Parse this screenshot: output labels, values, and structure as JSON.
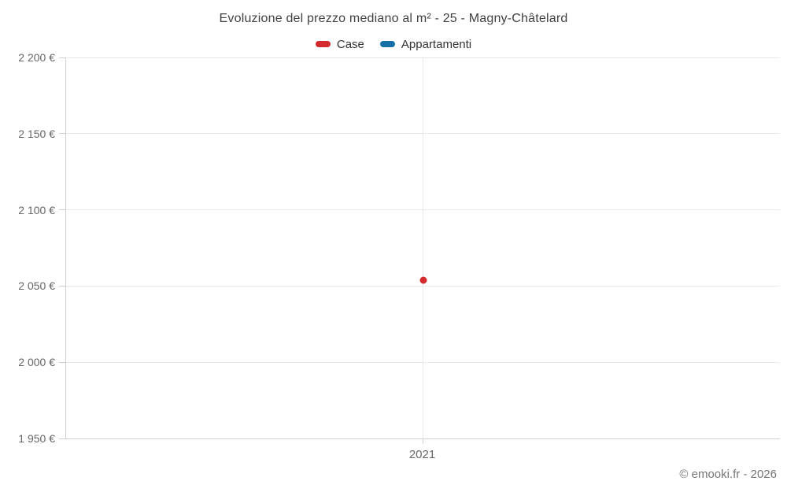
{
  "chart_data": {
    "type": "scatter",
    "title": "Evoluzione del prezzo mediano al m² - 25 - Magny-Châtelard",
    "xlabel": "",
    "ylabel": "",
    "categories": [
      "2021"
    ],
    "series": [
      {
        "name": "Case",
        "color": "#d22b2e",
        "values": [
          2054
        ]
      },
      {
        "name": "Appartamenti",
        "color": "#1670a8",
        "values": [
          null
        ]
      }
    ],
    "ylim": [
      1950,
      2200
    ],
    "yticks": [
      {
        "value": 2200,
        "label": "2 200 €"
      },
      {
        "value": 2150,
        "label": "2 150 €"
      },
      {
        "value": 2100,
        "label": "2 100 €"
      },
      {
        "value": 2050,
        "label": "2 050 €"
      },
      {
        "value": 2000,
        "label": "2 000 €"
      },
      {
        "value": 1950,
        "label": "1 950 €"
      }
    ],
    "grid": true,
    "legend_position": "top"
  },
  "footer": {
    "copyright": "© emooki.fr - 2026"
  }
}
